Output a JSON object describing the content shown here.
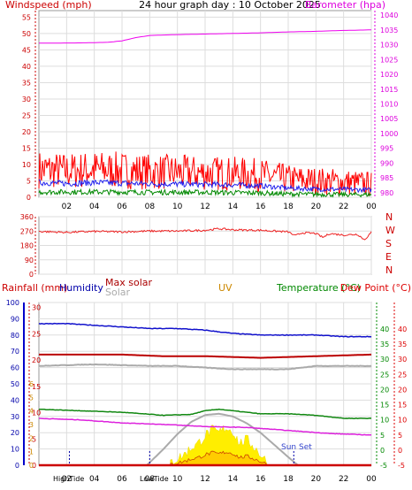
{
  "chart_data": [
    {
      "type": "line",
      "title": "24 hour graph day : 10 October 2025",
      "ylabel_left": "Windspeed (mph)",
      "ylabel_right": "Barometer (hpa)",
      "x_ticks": [
        "02",
        "04",
        "06",
        "08",
        "10",
        "12",
        "14",
        "16",
        "18",
        "20",
        "22",
        "00"
      ],
      "y_left_ticks": [
        0,
        5,
        10,
        15,
        20,
        25,
        30,
        35,
        40,
        45,
        50,
        55
      ],
      "y_left_range": [
        0,
        57
      ],
      "y_right_ticks": [
        980,
        985,
        990,
        995,
        1000,
        1005,
        1010,
        1015,
        1020,
        1025,
        1030,
        1035,
        1040
      ],
      "y_right_range": [
        978.5,
        1041.5
      ],
      "x_range_hours": [
        0,
        24
      ],
      "series": [
        {
          "role": "barometer",
          "color": "#ee00ee",
          "x": [
            0,
            3,
            5,
            6,
            7,
            8,
            10,
            12,
            14,
            16,
            18,
            20,
            22,
            24
          ],
          "values": [
            1030.5,
            1030.6,
            1030.8,
            1031.3,
            1032.4,
            1033.1,
            1033.4,
            1033.6,
            1033.8,
            1034.0,
            1034.3,
            1034.5,
            1034.8,
            1035.0
          ]
        },
        {
          "role": "wind gust",
          "color": "#ff0000",
          "x": [
            0,
            2,
            4,
            6,
            8,
            10,
            12,
            14,
            16,
            18,
            20,
            22,
            24
          ],
          "values": [
            8.5,
            8,
            8.5,
            8.2,
            7.8,
            7.6,
            7.4,
            7.2,
            6.8,
            5.5,
            5,
            4.6,
            4
          ]
        },
        {
          "role": "wind average",
          "color": "#2222ee",
          "x": [
            0,
            2,
            4,
            6,
            8,
            10,
            12,
            14,
            16,
            18,
            20,
            22,
            24
          ],
          "values": [
            4.5,
            4.2,
            4.5,
            4.3,
            4.1,
            4,
            3.9,
            3.8,
            3.5,
            2.8,
            2.5,
            2.4,
            2.2
          ]
        },
        {
          "role": "wind speed",
          "color": "#008800",
          "x": [
            0,
            2,
            4,
            6,
            8,
            10,
            12,
            14,
            16,
            18,
            20,
            22,
            24
          ],
          "values": [
            1.6,
            1.6,
            1.6,
            1.6,
            1.5,
            1.5,
            1.5,
            1.4,
            1.3,
            1,
            0.9,
            0.8,
            0.8
          ]
        }
      ]
    },
    {
      "type": "line",
      "y_ticks": [
        0,
        90,
        180,
        270,
        360
      ],
      "y_tick_labels": [
        "0",
        "90",
        "180",
        "270",
        "360"
      ],
      "y_range": [
        0,
        360
      ],
      "compass_labels": [
        "N",
        "W",
        "S",
        "E",
        "N"
      ],
      "x_range_hours": [
        0,
        24
      ],
      "series": [
        {
          "role": "wind direction",
          "color": "#ee2222",
          "x": [
            0,
            2,
            4,
            6,
            8,
            10,
            12,
            13,
            14,
            16,
            17,
            18,
            18.5,
            19,
            20,
            20.5,
            21,
            22,
            23,
            23.5,
            24
          ],
          "values": [
            268,
            262,
            268,
            265,
            270,
            270,
            275,
            285,
            278,
            275,
            270,
            265,
            240,
            260,
            255,
            230,
            255,
            245,
            250,
            215,
            262
          ]
        }
      ]
    },
    {
      "type": "line",
      "labels": {
        "rainfall": "Rainfall (mm)",
        "humidity": "Humidity",
        "max_solar": "Max solar",
        "solar": "Solar",
        "uv": "UV",
        "temperature": "Temperature (°C)",
        "dew_point": "Dew Point (°C)"
      },
      "colors": {
        "rainfall": "#cc0000",
        "humidity": "#0000aa",
        "max_solar": "#aa0000",
        "solar": "#aaaaaa",
        "uv": "#cc8800",
        "temperature": "#008800",
        "dew_point": "#dd0000",
        "uv_fill": "#ffee00",
        "solar_fill": "#ffcc00"
      },
      "axis_humidity_ticks": [
        0,
        10,
        20,
        30,
        40,
        50,
        60,
        70,
        80,
        90,
        100
      ],
      "axis_rain_ticks": [
        0,
        5,
        10,
        15,
        20,
        25,
        30
      ],
      "axis_uv_ticks": [
        0,
        1,
        2,
        3,
        4,
        5,
        6
      ],
      "axis_temp_ticks": [
        -5,
        0,
        5,
        10,
        15,
        20,
        25,
        30,
        35,
        40
      ],
      "axis_dew_ticks": [
        -5,
        0,
        5,
        10,
        15,
        20,
        25,
        30,
        35,
        40
      ],
      "x_ticks": [
        "02",
        "04",
        "06",
        "08",
        "10",
        "12",
        "14",
        "16",
        "18",
        "20",
        "22",
        "00"
      ],
      "x_range_hours": [
        0,
        24
      ],
      "markers": {
        "high_tide": "HighTide",
        "low_tide": "LowTide",
        "sun_set": "Sun Set"
      },
      "series": [
        {
          "role": "humidity",
          "axis": "humidity",
          "color": "#1111cc",
          "x": [
            0,
            2,
            4,
            6,
            8,
            10,
            12,
            14,
            16,
            18,
            20,
            22,
            24
          ],
          "values": [
            87,
            87,
            86,
            85,
            84,
            84,
            83,
            81,
            80,
            80,
            80,
            79,
            79
          ]
        },
        {
          "role": "baseline red",
          "axis": "humidity",
          "color": "#bb0000",
          "x": [
            0,
            6,
            9,
            12,
            16,
            20,
            24
          ],
          "values": [
            68,
            68,
            67,
            67,
            66,
            67,
            68
          ]
        },
        {
          "role": "solar max",
          "axis": "humidity",
          "color": "#aaaaaa",
          "x": [
            0,
            4,
            8,
            10,
            12,
            14,
            16,
            18,
            20,
            22,
            24
          ],
          "values": [
            61,
            62,
            61,
            61,
            60,
            59,
            59,
            59,
            61,
            61,
            61
          ]
        },
        {
          "role": "temperature",
          "axis": "temp",
          "color": "#118811",
          "x": [
            0,
            3,
            6,
            9,
            11,
            12,
            13,
            14,
            16,
            18,
            20,
            22,
            24
          ],
          "values": [
            13.5,
            13,
            12.5,
            11.5,
            11.8,
            13,
            13.5,
            13,
            12,
            12,
            11.5,
            10.5,
            10.5
          ]
        },
        {
          "role": "dew point",
          "axis": "temp",
          "color": "#dd22dd",
          "x": [
            0,
            3,
            6,
            9,
            12,
            15,
            18,
            21,
            24
          ],
          "values": [
            10.5,
            10,
            9,
            8.5,
            7.8,
            7.5,
            6.5,
            5.5,
            5
          ]
        },
        {
          "role": "solar radiation",
          "axis": "uv",
          "color": "#aaaaaa",
          "x": [
            7.8,
            9,
            10,
            11,
            12,
            13,
            14,
            15,
            16,
            17,
            18,
            18.7
          ],
          "values": [
            0,
            1.2,
            2.3,
            3.2,
            3.7,
            3.8,
            3.6,
            3.1,
            2.4,
            1.5,
            0.6,
            0
          ]
        },
        {
          "role": "uv index",
          "axis": "uv",
          "color": "#ffee00",
          "x": [
            9.5,
            10.5,
            11,
            11.5,
            12,
            12.5,
            13,
            13.5,
            14,
            14.5,
            15,
            15.5,
            16,
            16.5
          ],
          "values": [
            0.2,
            0.8,
            1.3,
            1.6,
            2.2,
            2.6,
            2.4,
            2.8,
            2.5,
            1.6,
            1.9,
            1.4,
            0.8,
            0.2
          ]
        },
        {
          "role": "rainfall",
          "axis": "rain",
          "color": "#cc0000",
          "x": [
            0,
            24
          ],
          "values": [
            0,
            0
          ]
        }
      ]
    }
  ]
}
